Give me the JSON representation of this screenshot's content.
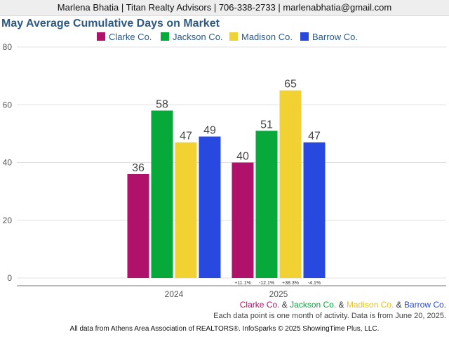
{
  "header": {
    "contact": "Marlena Bhatia | Titan Realty Advisors | 706-338-2733 | marlenabhatia@gmail.com"
  },
  "chart_data": {
    "type": "bar",
    "title": "May Average Cumulative Days on Market",
    "categories": [
      "2024",
      "2025"
    ],
    "series": [
      {
        "name": "Clarke Co.",
        "color": "#b0126b",
        "values": [
          36,
          40
        ],
        "change_2025": "+11.1%"
      },
      {
        "name": "Jackson Co.",
        "color": "#07a93a",
        "values": [
          58,
          51
        ],
        "change_2025": "-12.1%"
      },
      {
        "name": "Madison Co.",
        "color": "#f2d233",
        "values": [
          47,
          65
        ],
        "change_2025": "+38.3%"
      },
      {
        "name": "Barrow Co.",
        "color": "#2749e0",
        "values": [
          49,
          47
        ],
        "change_2025": "-4.1%"
      }
    ],
    "ylim": [
      0,
      80
    ],
    "yticks": [
      0,
      20,
      40,
      60,
      80
    ],
    "grid": true,
    "legend": "top"
  },
  "footer": {
    "legend_names": [
      "Clarke Co.",
      "Jackson Co.",
      "Madison Co.",
      "Barrow Co."
    ],
    "separator": "&",
    "note": "Each data point is one month of activity. Data is from June 20, 2025.",
    "source": "All data from Athens Area Association of REALTORS®. InfoSparks © 2025 ShowingTime Plus, LLC."
  }
}
